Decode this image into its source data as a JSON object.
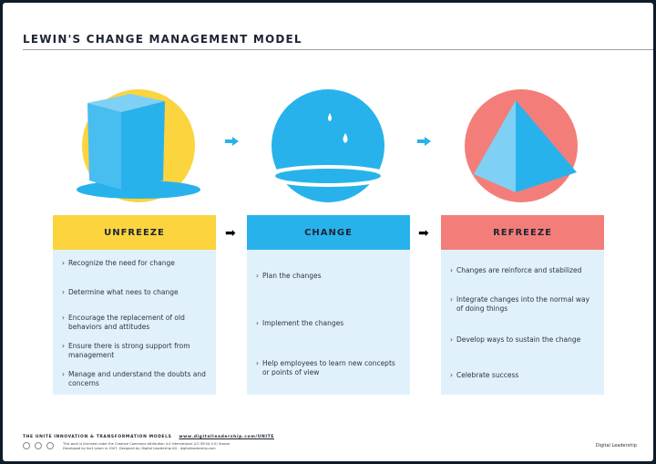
{
  "title": "LEWIN'S CHANGE MANAGEMENT MODEL",
  "colors": {
    "unfreeze": "#fbd43e",
    "change": "#27b2ec",
    "refreeze": "#f37e79",
    "panel": "#e1f1fb"
  },
  "stages": [
    {
      "label": "UNFREEZE",
      "icon": "ice-cube-icon",
      "items": [
        "Recognize the need for change",
        "Determine what nees to change",
        "Encourage the replacement of old behaviors and attitudes",
        "Ensure there is strong support from management",
        "Manage and understand the doubts and concerns"
      ]
    },
    {
      "label": "CHANGE",
      "icon": "water-drops-icon",
      "items": [
        "Plan the changes",
        "Implement the changes",
        "Help employees to learn new concepts or points of view"
      ]
    },
    {
      "label": "REFREEZE",
      "icon": "pyramid-icon",
      "items": [
        "Changes are reinforce and stabilized",
        "Integrate changes into the normal way of doing things",
        "Develop ways to sustain the change",
        "Celebrate success"
      ]
    }
  ],
  "footer": {
    "series": "THE UNITE INNOVATION & TRANSFORMATION MODELS",
    "url": "www.digitalleadership.com/UNITE",
    "license": "This work is licensed under the Creative Commons Attribution 4.0 International (CC BY-SA 4.0) license",
    "credit": "Developed by Kurt Lewin in 1947. Designed by: Digital Leadership AG - digitalleadership.com",
    "brand": "Digital Leadership"
  }
}
